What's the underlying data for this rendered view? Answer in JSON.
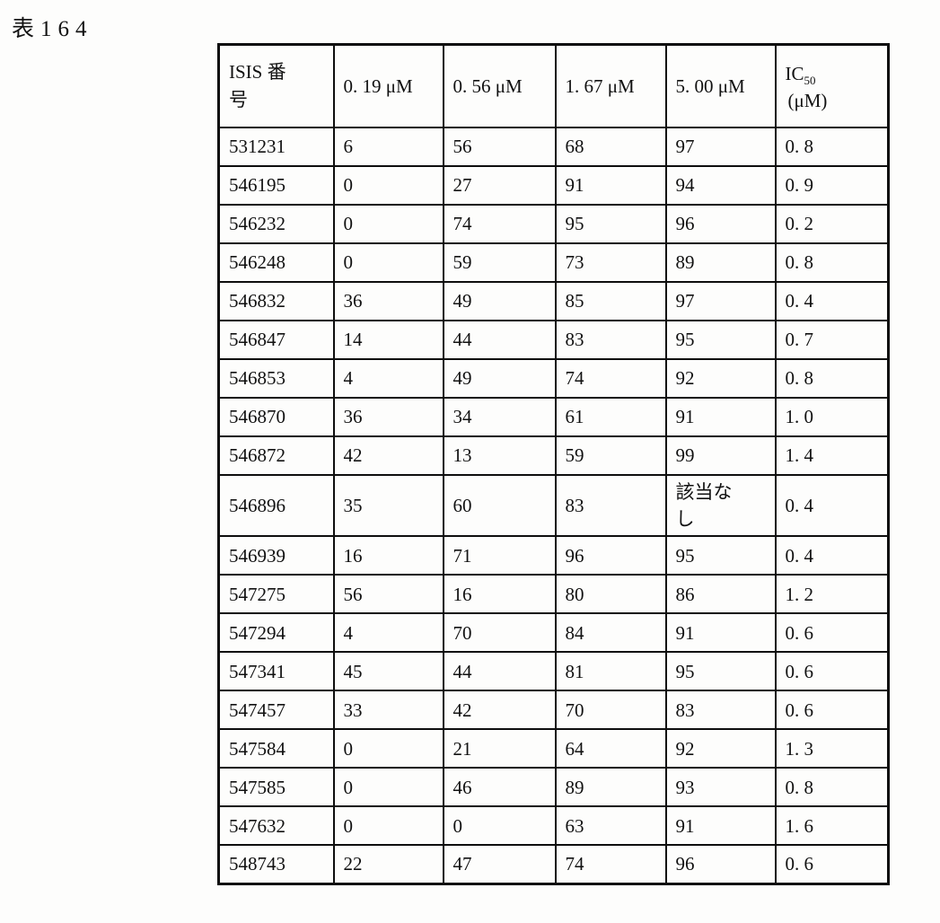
{
  "page": {
    "caption": "表164"
  },
  "table": {
    "col_headers": {
      "isis": "ISIS 番号",
      "dose1": "0. 19 μM",
      "dose2": "0. 56 μM",
      "dose3": "1. 67 μM",
      "dose4": "5. 00 μM",
      "ic50_main": "IC",
      "ic50_sub": "50",
      "ic50_unit": "(μM)"
    },
    "rows": [
      [
        "531231",
        "6",
        "56",
        "68",
        "97",
        "0. 8"
      ],
      [
        "546195",
        "0",
        "27",
        "91",
        "94",
        "0. 9"
      ],
      [
        "546232",
        "0",
        "74",
        "95",
        "96",
        "0. 2"
      ],
      [
        "546248",
        "0",
        "59",
        "73",
        "89",
        "0. 8"
      ],
      [
        "546832",
        "36",
        "49",
        "85",
        "97",
        "0. 4"
      ],
      [
        "546847",
        "14",
        "44",
        "83",
        "95",
        "0. 7"
      ],
      [
        "546853",
        "4",
        "49",
        "74",
        "92",
        "0. 8"
      ],
      [
        "546870",
        "36",
        "34",
        "61",
        "91",
        "1. 0"
      ],
      [
        "546872",
        "42",
        "13",
        "59",
        "99",
        "1. 4"
      ],
      [
        "546896",
        "35",
        "60",
        "83",
        "該当なし",
        "0. 4"
      ],
      [
        "546939",
        "16",
        "71",
        "96",
        "95",
        "0. 4"
      ],
      [
        "547275",
        "56",
        "16",
        "80",
        "86",
        "1. 2"
      ],
      [
        "547294",
        "4",
        "70",
        "84",
        "91",
        "0. 6"
      ],
      [
        "547341",
        "45",
        "44",
        "81",
        "95",
        "0. 6"
      ],
      [
        "547457",
        "33",
        "42",
        "70",
        "83",
        "0. 6"
      ],
      [
        "547584",
        "0",
        "21",
        "64",
        "92",
        "1. 3"
      ],
      [
        "547585",
        "0",
        "46",
        "89",
        "93",
        "0. 8"
      ],
      [
        "547632",
        "0",
        "0",
        "63",
        "91",
        "1. 6"
      ],
      [
        "548743",
        "22",
        "47",
        "74",
        "96",
        "0. 6"
      ]
    ]
  }
}
